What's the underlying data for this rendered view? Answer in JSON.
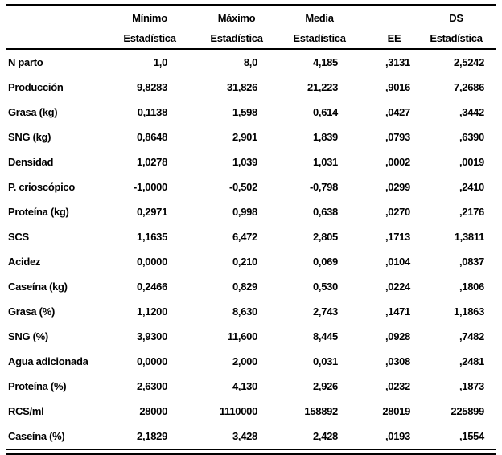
{
  "page": {
    "background": "#ffffff",
    "text_color": "#000000",
    "rule_color": "#000000"
  },
  "table": {
    "header_groups": [
      "",
      "Mínimo",
      "Máximo",
      "Media",
      "",
      "DS"
    ],
    "header_stats": [
      "",
      "Estadística",
      "Estadística",
      "Estadística",
      "EE",
      "Estadística"
    ],
    "rows": [
      {
        "label": "N parto",
        "values": [
          "1,0",
          "8,0",
          "4,185",
          ",3131",
          "2,5242"
        ]
      },
      {
        "label": "Producción",
        "values": [
          "9,8283",
          "31,826",
          "21,223",
          ",9016",
          "7,2686"
        ]
      },
      {
        "label": "Grasa (kg)",
        "values": [
          "0,1138",
          "1,598",
          "0,614",
          ",0427",
          ",3442"
        ]
      },
      {
        "label": "SNG (kg)",
        "values": [
          "0,8648",
          "2,901",
          "1,839",
          ",0793",
          ",6390"
        ]
      },
      {
        "label": "Densidad",
        "values": [
          "1,0278",
          "1,039",
          "1,031",
          ",0002",
          ",0019"
        ]
      },
      {
        "label": "P. crioscópico",
        "values": [
          "-1,0000",
          "-0,502",
          "-0,798",
          ",0299",
          ",2410"
        ]
      },
      {
        "label": "Proteína (kg)",
        "values": [
          "0,2971",
          "0,998",
          "0,638",
          ",0270",
          ",2176"
        ]
      },
      {
        "label": "SCS",
        "values": [
          "1,1635",
          "6,472",
          "2,805",
          ",1713",
          "1,3811"
        ]
      },
      {
        "label": "Acidez",
        "values": [
          "0,0000",
          "0,210",
          "0,069",
          ",0104",
          ",0837"
        ]
      },
      {
        "label": "Caseína (kg)",
        "values": [
          "0,2466",
          "0,829",
          "0,530",
          ",0224",
          ",1806"
        ]
      },
      {
        "label": "Grasa (%)",
        "values": [
          "1,1200",
          "8,630",
          "2,743",
          ",1471",
          "1,1863"
        ]
      },
      {
        "label": "SNG (%)",
        "values": [
          "3,9300",
          "11,600",
          "8,445",
          ",0928",
          ",7482"
        ]
      },
      {
        "label": "Agua adicionada",
        "values": [
          "0,0000",
          "2,000",
          "0,031",
          ",0308",
          ",2481"
        ]
      },
      {
        "label": "Proteína (%)",
        "values": [
          "2,6300",
          "4,130",
          "2,926",
          ",0232",
          ",1873"
        ]
      },
      {
        "label": "RCS/ml",
        "values": [
          "28000",
          "1110000",
          "158892",
          "28019",
          "225899"
        ]
      },
      {
        "label": "Caseína (%)",
        "values": [
          "2,1829",
          "3,428",
          "2,428",
          ",0193",
          ",1554"
        ]
      }
    ]
  }
}
